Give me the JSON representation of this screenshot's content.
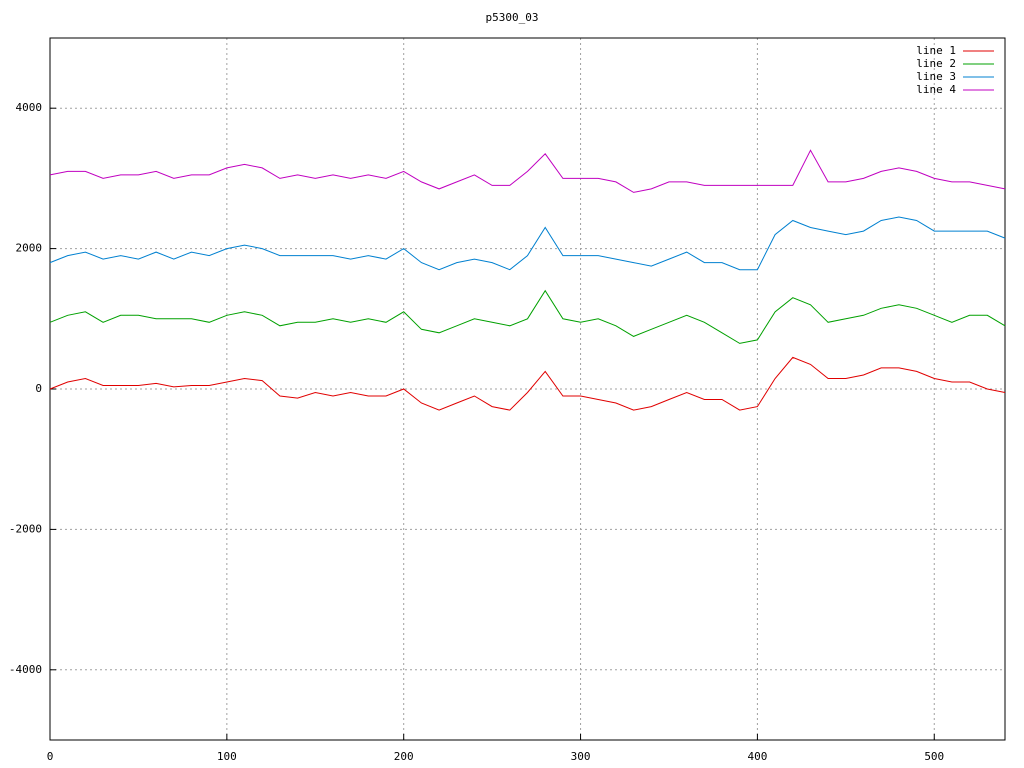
{
  "chart_data": {
    "type": "line",
    "title": "p5300_03",
    "x": [
      0,
      10,
      20,
      30,
      40,
      50,
      60,
      70,
      80,
      90,
      100,
      110,
      120,
      130,
      140,
      150,
      160,
      170,
      180,
      190,
      200,
      210,
      220,
      230,
      240,
      250,
      260,
      270,
      280,
      290,
      300,
      310,
      320,
      330,
      340,
      350,
      360,
      370,
      380,
      390,
      400,
      410,
      420,
      430,
      440,
      450,
      460,
      470,
      480,
      490,
      500,
      510,
      520,
      530,
      540
    ],
    "series": [
      {
        "name": "line 1",
        "color": "#e00000",
        "values": [
          0,
          100,
          150,
          50,
          50,
          50,
          80,
          30,
          50,
          50,
          100,
          150,
          120,
          -100,
          -130,
          -50,
          -100,
          -50,
          -100,
          -100,
          0,
          -200,
          -300,
          -200,
          -100,
          -250,
          -300,
          -50,
          250,
          -100,
          -100,
          -150,
          -200,
          -300,
          -250,
          -150,
          -50,
          -150,
          -150,
          -300,
          -250,
          150,
          450,
          350,
          150,
          150,
          200,
          300,
          300,
          250,
          150,
          100,
          100,
          0,
          -50
        ]
      },
      {
        "name": "line 2",
        "color": "#00a000",
        "values": [
          950,
          1050,
          1100,
          950,
          1050,
          1050,
          1000,
          1000,
          1000,
          950,
          1050,
          1100,
          1050,
          900,
          950,
          950,
          1000,
          950,
          1000,
          950,
          1100,
          850,
          800,
          900,
          1000,
          950,
          900,
          1000,
          1400,
          1000,
          950,
          1000,
          900,
          750,
          850,
          950,
          1050,
          950,
          800,
          650,
          700,
          1100,
          1300,
          1200,
          950,
          1000,
          1050,
          1150,
          1200,
          1150,
          1050,
          950,
          1050,
          1050,
          900
        ]
      },
      {
        "name": "line 3",
        "color": "#0080d0",
        "values": [
          1800,
          1900,
          1950,
          1850,
          1900,
          1850,
          1950,
          1850,
          1950,
          1900,
          2000,
          2050,
          2000,
          1900,
          1900,
          1900,
          1900,
          1850,
          1900,
          1850,
          2000,
          1800,
          1700,
          1800,
          1850,
          1800,
          1700,
          1900,
          2300,
          1900,
          1900,
          1900,
          1850,
          1800,
          1750,
          1850,
          1950,
          1800,
          1800,
          1700,
          1700,
          2200,
          2400,
          2300,
          2250,
          2200,
          2250,
          2400,
          2450,
          2400,
          2250,
          2250,
          2250,
          2250,
          2150
        ]
      },
      {
        "name": "line 4",
        "color": "#c000c0",
        "values": [
          3050,
          3100,
          3100,
          3000,
          3050,
          3050,
          3100,
          3000,
          3050,
          3050,
          3150,
          3200,
          3150,
          3000,
          3050,
          3000,
          3050,
          3000,
          3050,
          3000,
          3100,
          2950,
          2850,
          2950,
          3050,
          2900,
          2900,
          3100,
          3350,
          3000,
          3000,
          3000,
          2950,
          2800,
          2850,
          2950,
          2950,
          2900,
          2900,
          2900,
          2900,
          2900,
          2900,
          3400,
          2950,
          2950,
          3000,
          3100,
          3150,
          3100,
          3000,
          2950,
          2950,
          2900,
          2850
        ]
      }
    ],
    "xlim": [
      0,
      540
    ],
    "ylim": [
      -5000,
      5000
    ],
    "xticks": [
      0,
      100,
      200,
      300,
      400,
      500
    ],
    "yticks": [
      -4000,
      -2000,
      0,
      2000,
      4000
    ],
    "grid": true,
    "legend": "top-right"
  }
}
